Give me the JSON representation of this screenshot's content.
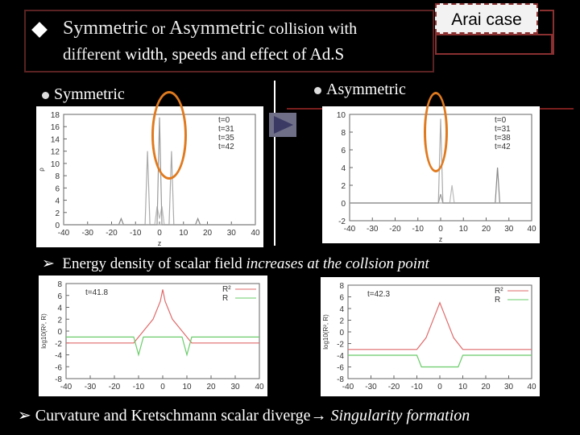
{
  "title": {
    "line1_a": "Symmetric",
    "line1_b": " or ",
    "line1_c": "Asymmetric",
    "line1_d": " collision with",
    "line2_a": "different",
    "line2_b": " width, speeds and effect of Ad.S"
  },
  "badge": {
    "label": "Arai case"
  },
  "bullets": {
    "symmetric": "Symmetric",
    "asymmetric": "Asymmetric"
  },
  "captions": {
    "energy_prefix": "Energy density of scalar field ",
    "energy_emph": "increases at the collsion point",
    "curv_prefix": "Curvature and Kretschmann scalar diverge→ ",
    "curv_emph": "Singularity formation"
  },
  "icons": {
    "diamond": "diamond-bullet-icon",
    "arrow": "arrow-bullet-icon",
    "play": "play-icon"
  },
  "colors": {
    "accent_red": "#7a1e1e",
    "highlight_orange": "#e07a1f"
  },
  "chart_data": [
    {
      "type": "line",
      "panel": "symmetric-density",
      "ylabel": "ρ",
      "xlabel": "z",
      "xlim": [
        -40,
        40
      ],
      "ylim": [
        0,
        18
      ],
      "yticks": [
        0,
        2,
        4,
        6,
        8,
        10,
        12,
        14,
        16,
        18
      ],
      "xticks": [
        -40,
        -30,
        -20,
        -10,
        0,
        10,
        20,
        30,
        40
      ],
      "legend": [
        "t=0",
        "t=31",
        "t=35",
        "t=42"
      ],
      "legend_position": "top-right",
      "series": [
        {
          "name": "t=0",
          "x": [
            -40,
            -17,
            -16,
            -15,
            15,
            16,
            17,
            40
          ],
          "y": [
            0,
            0,
            1,
            0,
            0,
            1,
            0,
            0
          ]
        },
        {
          "name": "t=31",
          "x": [
            -40,
            -6,
            -5,
            -4,
            4,
            5,
            6,
            40
          ],
          "y": [
            0,
            0,
            12,
            0,
            0,
            12,
            0,
            0
          ]
        },
        {
          "name": "t=35",
          "x": [
            -40,
            -2,
            -1,
            0,
            1,
            2,
            40
          ],
          "y": [
            0,
            0,
            3,
            1,
            3,
            0,
            0
          ]
        },
        {
          "name": "t=42",
          "x": [
            -40,
            -1,
            0,
            1,
            40
          ],
          "y": [
            0,
            0,
            17.5,
            0,
            0
          ]
        }
      ]
    },
    {
      "type": "line",
      "panel": "asymmetric-density",
      "xlabel": "z",
      "xlim": [
        -40,
        40
      ],
      "ylim": [
        -2,
        10
      ],
      "yticks": [
        -2,
        0,
        2,
        4,
        6,
        8,
        10
      ],
      "xticks": [
        -40,
        -30,
        -20,
        -10,
        0,
        10,
        20,
        30,
        40
      ],
      "legend": [
        "t=0",
        "t=31",
        "t=38",
        "t=42"
      ],
      "legend_position": "top-right",
      "series": [
        {
          "name": "t=0",
          "x": [
            -40,
            24,
            25,
            26,
            40
          ],
          "y": [
            0,
            0,
            4,
            0,
            0
          ]
        },
        {
          "name": "t=31",
          "x": [
            -40,
            -1,
            0,
            1,
            40
          ],
          "y": [
            0,
            0,
            9.5,
            0,
            0
          ]
        },
        {
          "name": "t=38",
          "x": [
            -40,
            4,
            5,
            6,
            40
          ],
          "y": [
            0,
            0,
            2,
            0,
            0
          ]
        },
        {
          "name": "t=42",
          "x": [
            -40,
            -1,
            0,
            1,
            40
          ],
          "y": [
            0,
            0,
            1,
            0,
            0
          ]
        }
      ]
    },
    {
      "type": "line",
      "panel": "symmetric-curvature",
      "ylabel": "log10(R², R)",
      "xlabel": "",
      "annotation": "t=41.8",
      "xlim": [
        -40,
        40
      ],
      "ylim": [
        -8,
        8
      ],
      "yticks": [
        -8,
        -6,
        -4,
        -2,
        0,
        2,
        4,
        6,
        8
      ],
      "xticks": [
        -40,
        -30,
        -20,
        -10,
        0,
        10,
        20,
        30,
        40
      ],
      "legend": [
        "R²",
        "R"
      ],
      "legend_position": "top-right",
      "series": [
        {
          "name": "R²",
          "x": [
            -40,
            -12,
            -8,
            -4,
            -1,
            0,
            1,
            4,
            8,
            12,
            40
          ],
          "y": [
            -2,
            -2,
            0,
            2,
            5,
            7,
            5,
            2,
            0,
            -2,
            -2
          ]
        },
        {
          "name": "R",
          "x": [
            -40,
            -12,
            -10,
            -8,
            8,
            10,
            12,
            40
          ],
          "y": [
            -1,
            -1,
            -4,
            -1,
            -1,
            -4,
            -1,
            -1
          ]
        }
      ]
    },
    {
      "type": "line",
      "panel": "asymmetric-curvature",
      "ylabel": "log10(R², R)",
      "xlabel": "",
      "annotation": "t=42.3",
      "xlim": [
        -40,
        40
      ],
      "ylim": [
        -8,
        8
      ],
      "yticks": [
        -8,
        -6,
        -4,
        -2,
        0,
        2,
        4,
        6,
        8
      ],
      "xticks": [
        -40,
        -30,
        -20,
        -10,
        0,
        10,
        20,
        30,
        40
      ],
      "legend": [
        "R²",
        "R"
      ],
      "legend_position": "top-right",
      "series": [
        {
          "name": "R²",
          "x": [
            -40,
            -10,
            -6,
            -2,
            0,
            2,
            6,
            10,
            40
          ],
          "y": [
            -3,
            -3,
            -1,
            3,
            5,
            3,
            -1,
            -3,
            -3
          ]
        },
        {
          "name": "R",
          "x": [
            -40,
            -10,
            -8,
            8,
            10,
            40
          ],
          "y": [
            -4,
            -4,
            -6,
            -6,
            -4,
            -4
          ]
        }
      ]
    }
  ]
}
